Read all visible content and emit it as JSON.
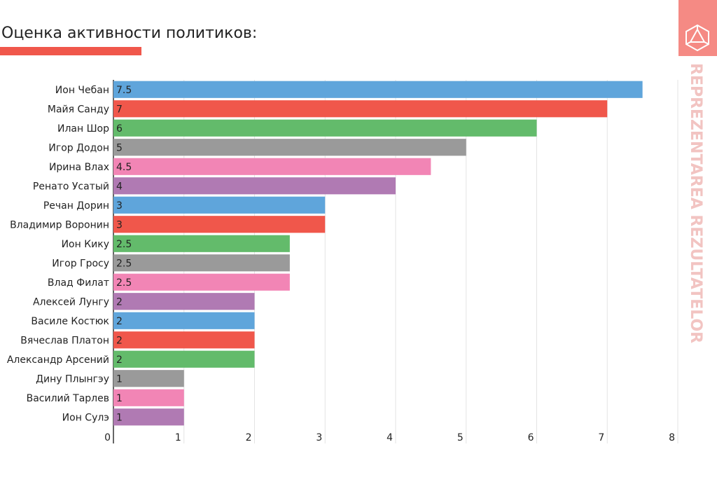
{
  "chart_data": {
    "type": "barh",
    "title": "Оценка активности политиков:",
    "side_text": "REPREZENTAREA REZULTATELOR",
    "categories": [
      "Ион Чебан",
      "Майя Санду",
      "Илан Шор",
      "Игор Додон",
      "Ирина Влах",
      "Ренато Усатый",
      "Речан Дорин",
      "Владимир Воронин",
      "Ион Кику",
      "Игор Гросу",
      "Влад Филат",
      "Алексей Лунгу",
      "Василе Костюк",
      "Вячеслав Платон",
      "Александр Арсений",
      "Дину Плынгэу",
      "Василий Тарлев",
      "Ион Сулэ"
    ],
    "values": [
      7.5,
      7,
      6,
      5,
      4.5,
      4,
      3,
      3,
      2.5,
      2.5,
      2.5,
      2,
      2,
      2,
      2,
      1,
      1,
      1
    ],
    "colors": [
      "#5fa5db",
      "#f0574b",
      "#63bb6b",
      "#9a9a9a",
      "#f285b5",
      "#b07ab3",
      "#5fa5db",
      "#f0574b",
      "#63bb6b",
      "#9a9a9a",
      "#f285b5",
      "#b07ab3",
      "#5fa5db",
      "#f0574b",
      "#63bb6b",
      "#9a9a9a",
      "#f285b5",
      "#b07ab3"
    ],
    "xlim": [
      0,
      8
    ],
    "xticks": [
      0,
      1,
      2,
      3,
      4,
      5,
      6,
      7,
      8
    ],
    "grid": true
  }
}
